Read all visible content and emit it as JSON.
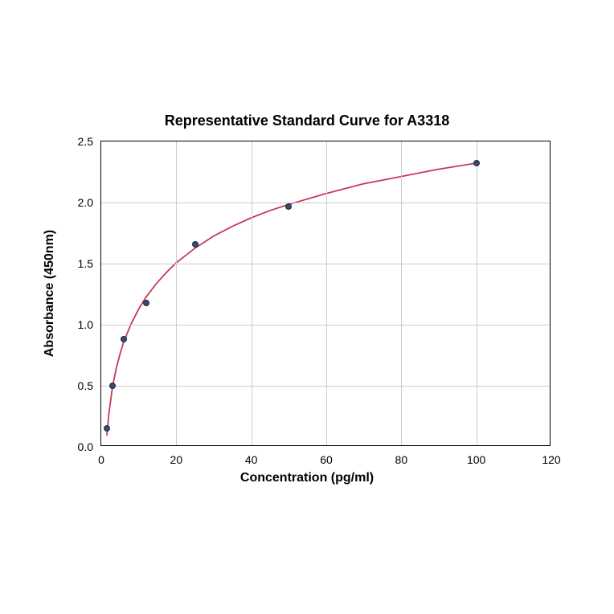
{
  "chart": {
    "type": "scatter-line",
    "title": "Representative Standard Curve for A3318",
    "title_fontsize": 18,
    "title_fontweight": "bold",
    "xlabel": "Concentration (pg/ml)",
    "ylabel": "Absorbance (450nm)",
    "label_fontsize": 16,
    "label_fontweight": "bold",
    "xlim": [
      0,
      120
    ],
    "ylim": [
      0,
      2.5
    ],
    "xticks": [
      0,
      20,
      40,
      60,
      80,
      100,
      120
    ],
    "yticks": [
      0.0,
      0.5,
      1.0,
      1.5,
      2.0,
      2.5
    ],
    "ytick_labels": [
      "0.0",
      "0.5",
      "1.0",
      "1.5",
      "2.0",
      "2.5"
    ],
    "tick_fontsize": 14,
    "background_color": "#ffffff",
    "grid_color": "#cccccc",
    "border_color": "#000000",
    "data_points": [
      {
        "x": 1.5,
        "y": 0.15
      },
      {
        "x": 3,
        "y": 0.5
      },
      {
        "x": 6,
        "y": 0.88
      },
      {
        "x": 12,
        "y": 1.18
      },
      {
        "x": 25,
        "y": 1.66
      },
      {
        "x": 50,
        "y": 1.97
      },
      {
        "x": 100,
        "y": 2.32
      }
    ],
    "marker_color": "#3a4a6a",
    "marker_border": "#1a2a4a",
    "marker_size": 8,
    "line_color": "#c8385a",
    "line_width": 1.8,
    "curve_samples": [
      {
        "x": 1.5,
        "y": 0.08
      },
      {
        "x": 2,
        "y": 0.25
      },
      {
        "x": 3,
        "y": 0.48
      },
      {
        "x": 4,
        "y": 0.63
      },
      {
        "x": 5,
        "y": 0.75
      },
      {
        "x": 6,
        "y": 0.85
      },
      {
        "x": 8,
        "y": 1.0
      },
      {
        "x": 10,
        "y": 1.12
      },
      {
        "x": 12,
        "y": 1.22
      },
      {
        "x": 15,
        "y": 1.34
      },
      {
        "x": 18,
        "y": 1.44
      },
      {
        "x": 20,
        "y": 1.5
      },
      {
        "x": 25,
        "y": 1.62
      },
      {
        "x": 30,
        "y": 1.72
      },
      {
        "x": 35,
        "y": 1.8
      },
      {
        "x": 40,
        "y": 1.87
      },
      {
        "x": 45,
        "y": 1.93
      },
      {
        "x": 50,
        "y": 1.98
      },
      {
        "x": 60,
        "y": 2.07
      },
      {
        "x": 70,
        "y": 2.15
      },
      {
        "x": 80,
        "y": 2.21
      },
      {
        "x": 90,
        "y": 2.27
      },
      {
        "x": 100,
        "y": 2.32
      }
    ]
  }
}
